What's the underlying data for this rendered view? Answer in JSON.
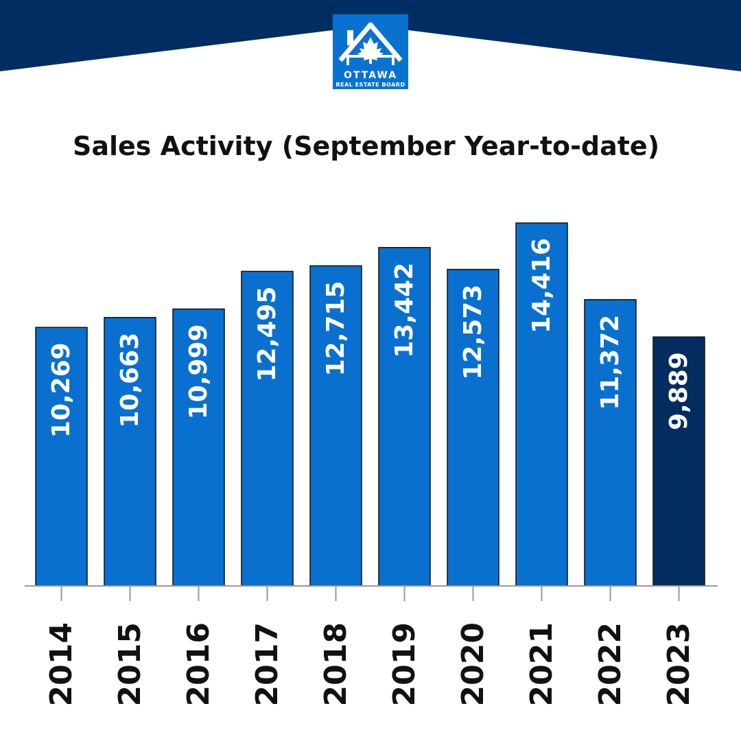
{
  "brand": {
    "logo_line1": "OTTAWA",
    "logo_line2": "REAL ESTATE BOARD",
    "logo_icon": "house-maple-leaf-icon",
    "header_color": "#012e62",
    "logo_color": "#0972d1"
  },
  "colors": {
    "bar": "#0970d0",
    "bar_highlight": "#032d60",
    "bar_stroke": "#111111",
    "axis": "#999999"
  },
  "chart_data": {
    "type": "bar",
    "title": "Sales Activity (September Year-to-date)",
    "categories": [
      "2014",
      "2015",
      "2016",
      "2017",
      "2018",
      "2019",
      "2020",
      "2021",
      "2022",
      "2023"
    ],
    "values": [
      10269,
      10663,
      10999,
      12495,
      12715,
      13442,
      12573,
      14416,
      11372,
      9889
    ],
    "value_labels": [
      "10,269",
      "10,663",
      "10,999",
      "12,495",
      "12,715",
      "13,442",
      "12,573",
      "14,416",
      "11,372",
      "9,889"
    ],
    "highlight_category": "2023",
    "ylim": [
      0,
      14416
    ],
    "xlabel": "",
    "ylabel": "",
    "grid": false,
    "legend": "none"
  }
}
